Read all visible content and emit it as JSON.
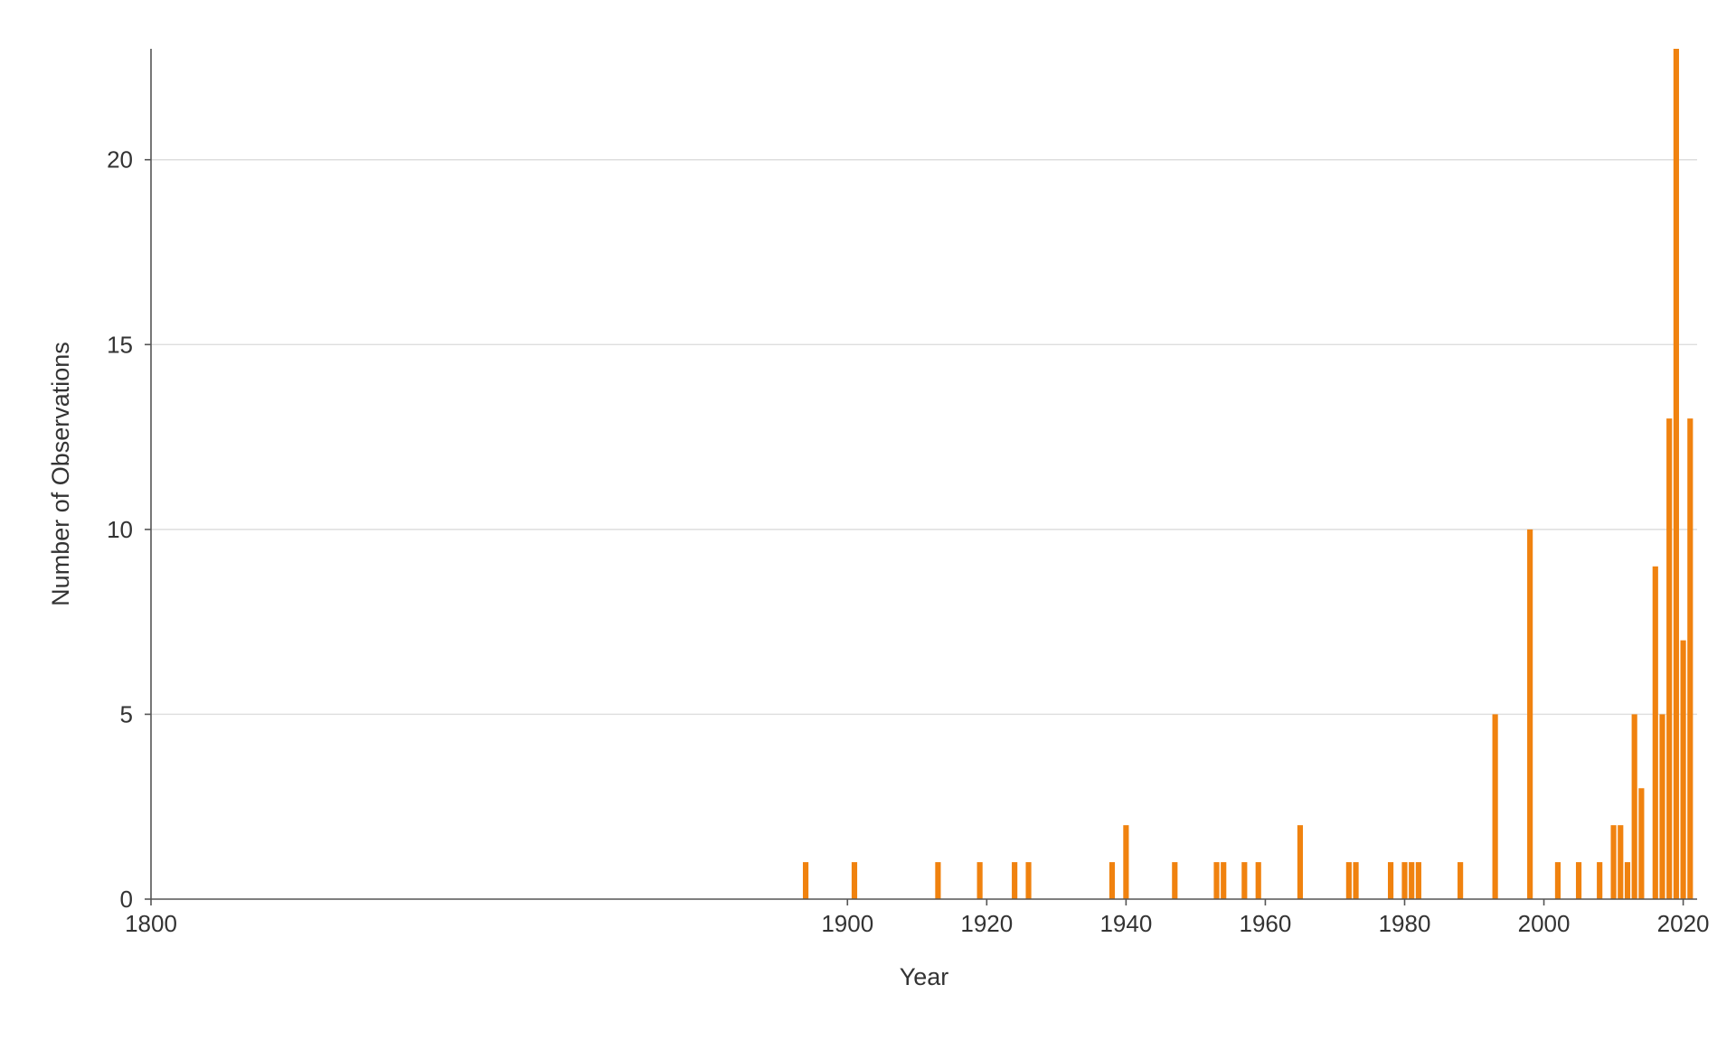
{
  "chart_data": {
    "type": "bar",
    "xlabel": "Year",
    "ylabel": "Number of Observations",
    "xlim": [
      1800,
      2022
    ],
    "ylim": [
      0,
      23
    ],
    "x_ticks": [
      1800,
      1900,
      1920,
      1940,
      1960,
      1980,
      2000,
      2020
    ],
    "y_ticks": [
      0,
      5,
      10,
      15,
      20
    ],
    "grid": "horizontal",
    "legend": "none",
    "bar_color": "#F0820F",
    "series": [
      {
        "x": [
          1894,
          1901,
          1913,
          1919,
          1924,
          1926,
          1938,
          1940,
          1947,
          1953,
          1954,
          1957,
          1959,
          1965,
          1972,
          1973,
          1978,
          1980,
          1981,
          1982,
          1988,
          1993,
          1998,
          2002,
          2005,
          2008,
          2010,
          2011,
          2012,
          2013,
          2014,
          2016,
          2017,
          2018,
          2019,
          2020,
          2021
        ],
        "values": [
          1,
          1,
          1,
          1,
          1,
          1,
          1,
          2,
          1,
          1,
          1,
          1,
          1,
          2,
          1,
          1,
          1,
          1,
          1,
          1,
          1,
          5,
          10,
          1,
          1,
          1,
          2,
          2,
          1,
          5,
          3,
          9,
          5,
          13,
          23,
          7,
          13
        ]
      }
    ]
  }
}
